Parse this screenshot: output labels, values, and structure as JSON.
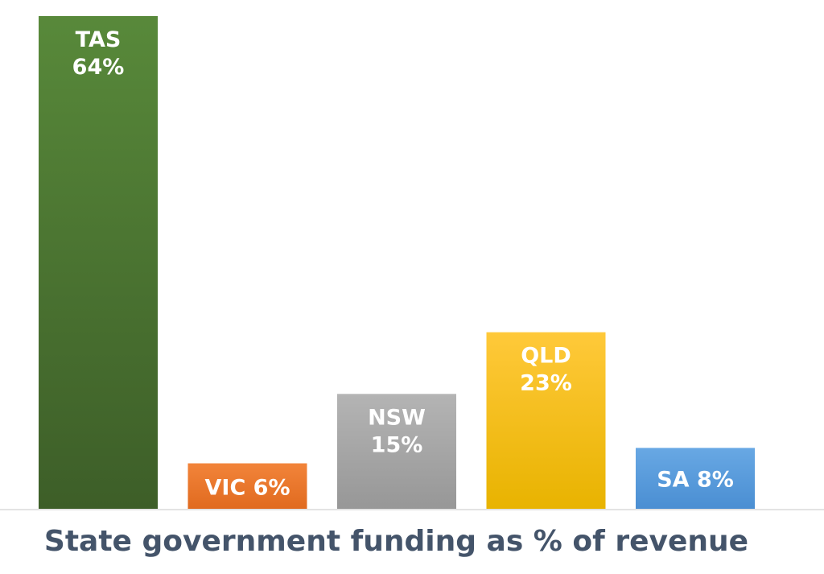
{
  "chart_data": {
    "type": "bar",
    "title": "State government funding as % of revenue",
    "xlabel": "",
    "ylabel": "",
    "categories": [
      "TAS",
      "VIC",
      "NSW",
      "QLD",
      "SA"
    ],
    "values": [
      64,
      6,
      15,
      23,
      8
    ],
    "value_labels": [
      "64%",
      "6%",
      "15%",
      "23%",
      "8%"
    ],
    "ylim": [
      0,
      64
    ],
    "grid": false,
    "legend": "none",
    "label_position": "inside-top",
    "colors": {
      "TAS": [
        "#58893a",
        "#3d5e28"
      ],
      "VIC": [
        "#f2843a",
        "#e06a1f"
      ],
      "NSW": [
        "#b4b4b4",
        "#979797"
      ],
      "QLD": [
        "#ffc93a",
        "#e8b300"
      ],
      "SA": [
        "#68a8e4",
        "#4a8ed2"
      ]
    },
    "baseline_color": "#e3e3e3",
    "title_color": "#44546a"
  }
}
